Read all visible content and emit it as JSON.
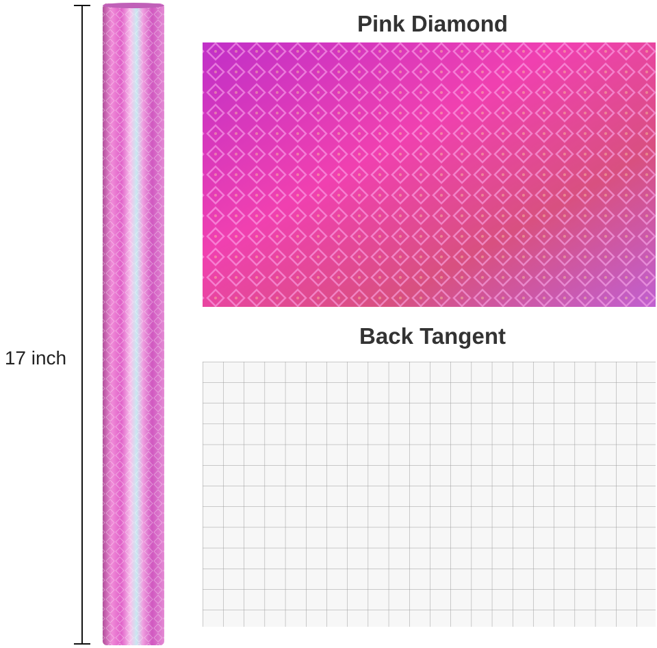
{
  "labels": {
    "height": "17 inch",
    "front": "Pink Diamond",
    "back": "Back Tangent"
  }
}
